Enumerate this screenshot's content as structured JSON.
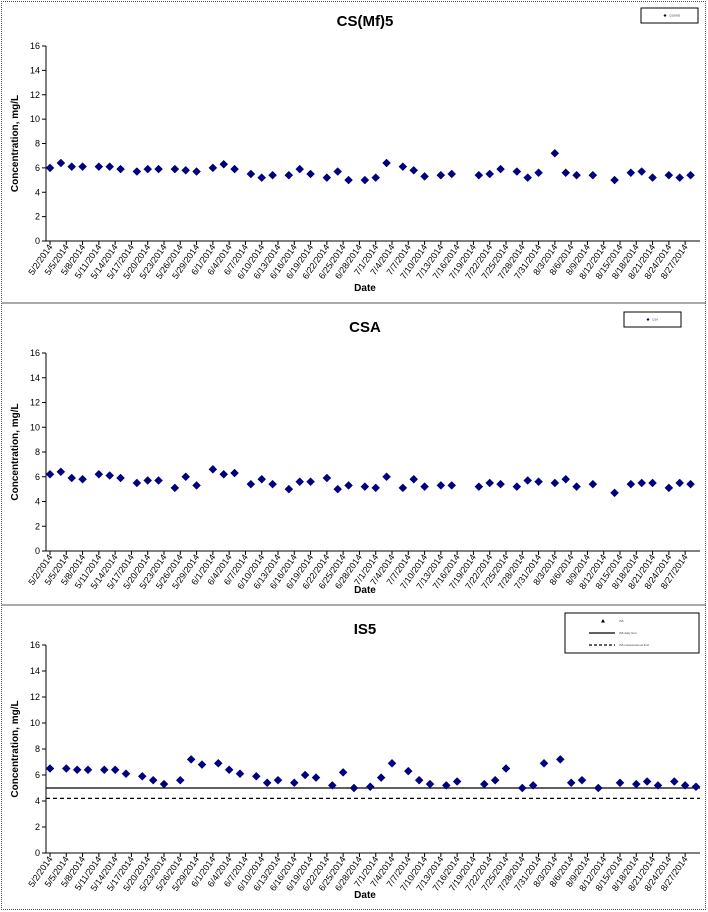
{
  "chart_data": [
    {
      "type": "scatter",
      "title": "CS(Mf)5",
      "xlabel": "Date",
      "ylabel": "Concentration, mg/L",
      "ylim": [
        0,
        16
      ],
      "yticks": [
        "0",
        "2",
        "4",
        "6",
        "8",
        "10",
        "12",
        "14",
        "16"
      ],
      "grid": false,
      "legend_placement": "top-right",
      "x_tick_labels": [
        "5/2/2014",
        "5/5/2014",
        "5/8/2014",
        "5/11/2014",
        "5/14/2014",
        "5/17/2014",
        "5/20/2014",
        "5/23/2014",
        "5/26/2014",
        "5/29/2014",
        "6/1/2014",
        "6/4/2014",
        "6/7/2014",
        "6/10/2014",
        "6/13/2014",
        "6/16/2014",
        "6/19/2014",
        "6/22/2014",
        "6/25/2014",
        "6/28/2014",
        "7/1/2014",
        "7/4/2014",
        "7/7/2014",
        "7/10/2014",
        "7/13/2014",
        "7/16/2014",
        "7/19/2014",
        "7/22/2014",
        "7/25/2014",
        "7/28/2014",
        "7/31/2014",
        "8/3/2014",
        "8/6/2014",
        "8/9/2014",
        "8/12/2014",
        "8/15/2014",
        "8/18/2014",
        "8/21/2014",
        "8/24/2014",
        "8/27/2014"
      ],
      "x_start": "5/2/2014",
      "x_end": "8/29/2014",
      "series": [
        {
          "points": [
            [
              "5/2/2014",
              6.0
            ],
            [
              "5/4/2014",
              6.4
            ],
            [
              "5/6/2014",
              6.1
            ],
            [
              "5/8/2014",
              6.1
            ],
            [
              "5/11/2014",
              6.1
            ],
            [
              "5/13/2014",
              6.1
            ],
            [
              "5/15/2014",
              5.9
            ],
            [
              "5/18/2014",
              5.7
            ],
            [
              "5/20/2014",
              5.9
            ],
            [
              "5/22/2014",
              5.9
            ],
            [
              "5/25/2014",
              5.9
            ],
            [
              "5/27/2014",
              5.8
            ],
            [
              "5/29/2014",
              5.7
            ],
            [
              "6/1/2014",
              6.0
            ],
            [
              "6/3/2014",
              6.3
            ],
            [
              "6/5/2014",
              5.9
            ],
            [
              "6/8/2014",
              5.5
            ],
            [
              "6/10/2014",
              5.2
            ],
            [
              "6/12/2014",
              5.4
            ],
            [
              "6/15/2014",
              5.4
            ],
            [
              "6/17/2014",
              5.9
            ],
            [
              "6/19/2014",
              5.5
            ],
            [
              "6/22/2014",
              5.2
            ],
            [
              "6/24/2014",
              5.7
            ],
            [
              "6/26/2014",
              5.0
            ],
            [
              "6/29/2014",
              5.0
            ],
            [
              "7/1/2014",
              5.2
            ],
            [
              "7/3/2014",
              6.4
            ],
            [
              "7/6/2014",
              6.1
            ],
            [
              "7/8/2014",
              5.8
            ],
            [
              "7/10/2014",
              5.3
            ],
            [
              "7/13/2014",
              5.4
            ],
            [
              "7/15/2014",
              5.5
            ],
            [
              "7/20/2014",
              5.4
            ],
            [
              "7/22/2014",
              5.5
            ],
            [
              "7/24/2014",
              5.9
            ],
            [
              "7/27/2014",
              5.7
            ],
            [
              "7/29/2014",
              5.2
            ],
            [
              "7/31/2014",
              5.6
            ],
            [
              "8/3/2014",
              7.2
            ],
            [
              "8/5/2014",
              5.6
            ],
            [
              "8/7/2014",
              5.4
            ],
            [
              "8/10/2014",
              5.4
            ],
            [
              "8/14/2014",
              5.0
            ],
            [
              "8/17/2014",
              5.6
            ],
            [
              "8/19/2014",
              5.7
            ],
            [
              "8/21/2014",
              5.2
            ],
            [
              "8/24/2014",
              5.4
            ],
            [
              "8/26/2014",
              5.2
            ],
            [
              "8/28/2014",
              5.4
            ]
          ]
        }
      ],
      "legend": {
        "entries": [
          {
            "marker": "diamond",
            "text": "CS(Mf)5"
          }
        ]
      }
    },
    {
      "type": "scatter",
      "title": "CSA",
      "xlabel": "Date",
      "ylabel": "Concentration, mg/L",
      "ylim": [
        0,
        16
      ],
      "yticks": [
        "0",
        "2",
        "4",
        "6",
        "8",
        "10",
        "12",
        "14",
        "16"
      ],
      "grid": false,
      "legend_placement": "top-right",
      "x_tick_labels": [
        "5/2/2014",
        "5/5/2014",
        "5/8/2014",
        "5/11/2014",
        "5/14/2014",
        "5/17/2014",
        "5/20/2014",
        "5/23/2014",
        "5/26/2014",
        "5/29/2014",
        "6/1/2014",
        "6/4/2014",
        "6/7/2014",
        "6/10/2014",
        "6/13/2014",
        "6/16/2014",
        "6/19/2014",
        "6/22/2014",
        "6/25/2014",
        "6/28/2014",
        "7/1/2014",
        "7/4/2014",
        "7/7/2014",
        "7/10/2014",
        "7/13/2014",
        "7/16/2014",
        "7/19/2014",
        "7/22/2014",
        "7/25/2014",
        "7/28/2014",
        "7/31/2014",
        "8/3/2014",
        "8/6/2014",
        "8/9/2014",
        "8/12/2014",
        "8/15/2014",
        "8/18/2014",
        "8/21/2014",
        "8/24/2014",
        "8/27/2014"
      ],
      "x_start": "5/2/2014",
      "x_end": "8/29/2014",
      "series": [
        {
          "points": [
            [
              "5/2/2014",
              6.2
            ],
            [
              "5/4/2014",
              6.4
            ],
            [
              "5/6/2014",
              5.9
            ],
            [
              "5/8/2014",
              5.8
            ],
            [
              "5/11/2014",
              6.2
            ],
            [
              "5/13/2014",
              6.1
            ],
            [
              "5/15/2014",
              5.9
            ],
            [
              "5/18/2014",
              5.5
            ],
            [
              "5/20/2014",
              5.7
            ],
            [
              "5/22/2014",
              5.7
            ],
            [
              "5/25/2014",
              5.1
            ],
            [
              "5/27/2014",
              6.0
            ],
            [
              "5/29/2014",
              5.3
            ],
            [
              "6/1/2014",
              6.6
            ],
            [
              "6/3/2014",
              6.2
            ],
            [
              "6/5/2014",
              6.3
            ],
            [
              "6/8/2014",
              5.4
            ],
            [
              "6/10/2014",
              5.8
            ],
            [
              "6/12/2014",
              5.4
            ],
            [
              "6/15/2014",
              5.0
            ],
            [
              "6/17/2014",
              5.6
            ],
            [
              "6/19/2014",
              5.6
            ],
            [
              "6/22/2014",
              5.9
            ],
            [
              "6/24/2014",
              5.0
            ],
            [
              "6/26/2014",
              5.3
            ],
            [
              "6/29/2014",
              5.2
            ],
            [
              "7/1/2014",
              5.1
            ],
            [
              "7/3/2014",
              6.0
            ],
            [
              "7/6/2014",
              5.1
            ],
            [
              "7/8/2014",
              5.8
            ],
            [
              "7/10/2014",
              5.2
            ],
            [
              "7/13/2014",
              5.3
            ],
            [
              "7/15/2014",
              5.3
            ],
            [
              "7/20/2014",
              5.2
            ],
            [
              "7/22/2014",
              5.5
            ],
            [
              "7/24/2014",
              5.4
            ],
            [
              "7/27/2014",
              5.2
            ],
            [
              "7/29/2014",
              5.7
            ],
            [
              "7/31/2014",
              5.6
            ],
            [
              "8/3/2014",
              5.5
            ],
            [
              "8/5/2014",
              5.8
            ],
            [
              "8/7/2014",
              5.2
            ],
            [
              "8/10/2014",
              5.4
            ],
            [
              "8/14/2014",
              4.7
            ],
            [
              "8/17/2014",
              5.4
            ],
            [
              "8/19/2014",
              5.5
            ],
            [
              "8/21/2014",
              5.5
            ],
            [
              "8/24/2014",
              5.1
            ],
            [
              "8/26/2014",
              5.5
            ],
            [
              "8/28/2014",
              5.4
            ]
          ]
        }
      ],
      "legend": {
        "entries": [
          {
            "marker": "diamond",
            "text": "CSA"
          }
        ]
      }
    },
    {
      "type": "scatter",
      "title": "IS5",
      "xlabel": "Date",
      "ylabel": "Concentration, mg/L",
      "ylim": [
        0,
        16
      ],
      "yticks": [
        "0",
        "2",
        "4",
        "6",
        "8",
        "10",
        "12",
        "14",
        "16"
      ],
      "grid": false,
      "legend_placement": "top-right",
      "x_tick_labels": [
        "5/2/2014",
        "5/5/2014",
        "5/8/2014",
        "5/11/2014",
        "5/14/2014",
        "5/17/2014",
        "5/20/2014",
        "5/23/2014",
        "5/26/2014",
        "5/29/2014",
        "6/1/2014",
        "6/4/2014",
        "6/7/2014",
        "6/10/2014",
        "6/13/2014",
        "6/16/2014",
        "6/19/2014",
        "6/22/2014",
        "6/25/2014",
        "6/28/2014",
        "7/1/2014",
        "7/4/2014",
        "7/7/2014",
        "7/10/2014",
        "7/13/2014",
        "7/16/2014",
        "7/19/2014",
        "7/22/2014",
        "7/25/2014",
        "7/28/2014",
        "7/31/2014",
        "8/3/2014",
        "8/6/2014",
        "8/9/2014",
        "8/12/2014",
        "8/15/2014",
        "8/18/2014",
        "8/21/2014",
        "8/24/2014",
        "8/27/2014"
      ],
      "x_start": "5/2/2014",
      "x_end": "8/29/2014",
      "series": [
        {
          "points": [
            [
              "5/2/2014",
              6.5
            ],
            [
              "5/5/2014",
              6.5
            ],
            [
              "5/7/2014",
              6.4
            ],
            [
              "5/9/2014",
              6.4
            ],
            [
              "5/12/2014",
              6.4
            ],
            [
              "5/14/2014",
              6.4
            ],
            [
              "5/16/2014",
              6.1
            ],
            [
              "5/19/2014",
              5.9
            ],
            [
              "5/21/2014",
              5.6
            ],
            [
              "5/23/2014",
              5.3
            ],
            [
              "5/26/2014",
              5.6
            ],
            [
              "5/28/2014",
              7.2
            ],
            [
              "5/30/2014",
              6.8
            ],
            [
              "6/2/2014",
              6.9
            ],
            [
              "6/4/2014",
              6.4
            ],
            [
              "6/6/2014",
              6.1
            ],
            [
              "6/9/2014",
              5.9
            ],
            [
              "6/11/2014",
              5.4
            ],
            [
              "6/13/2014",
              5.6
            ],
            [
              "6/16/2014",
              5.4
            ],
            [
              "6/18/2014",
              6.0
            ],
            [
              "6/20/2014",
              5.8
            ],
            [
              "6/23/2014",
              5.2
            ],
            [
              "6/25/2014",
              6.2
            ],
            [
              "6/27/2014",
              5.0
            ],
            [
              "6/30/2014",
              5.1
            ],
            [
              "7/2/2014",
              5.8
            ],
            [
              "7/4/2014",
              6.9
            ],
            [
              "7/7/2014",
              6.3
            ],
            [
              "7/9/2014",
              5.6
            ],
            [
              "7/11/2014",
              5.3
            ],
            [
              "7/14/2014",
              5.2
            ],
            [
              "7/16/2014",
              5.5
            ],
            [
              "7/21/2014",
              5.3
            ],
            [
              "7/23/2014",
              5.6
            ],
            [
              "7/25/2014",
              6.5
            ],
            [
              "7/28/2014",
              5.0
            ],
            [
              "7/30/2014",
              5.2
            ],
            [
              "8/1/2014",
              6.9
            ],
            [
              "8/4/2014",
              7.2
            ],
            [
              "8/6/2014",
              5.4
            ],
            [
              "8/8/2014",
              5.6
            ],
            [
              "8/11/2014",
              5.0
            ],
            [
              "8/15/2014",
              5.4
            ],
            [
              "8/18/2014",
              5.3
            ],
            [
              "8/20/2014",
              5.5
            ],
            [
              "8/22/2014",
              5.2
            ],
            [
              "8/25/2014",
              5.5
            ],
            [
              "8/27/2014",
              5.2
            ],
            [
              "8/29/2014",
              5.1
            ]
          ]
        }
      ],
      "reference_lines": [
        {
          "value": 5.0,
          "style": "solid"
        },
        {
          "value": 4.2,
          "style": "dashed"
        }
      ],
      "legend": {
        "entries": [
          {
            "marker": "triangle",
            "text": "IS5"
          },
          {
            "marker": "solid-line",
            "text": "IS5 daily limit"
          },
          {
            "marker": "dashed-line",
            "text": "IS5 instantaneous limit"
          }
        ]
      }
    }
  ],
  "colors": {
    "marker": "#00007f",
    "axis": "#000000",
    "border": "#555555"
  }
}
